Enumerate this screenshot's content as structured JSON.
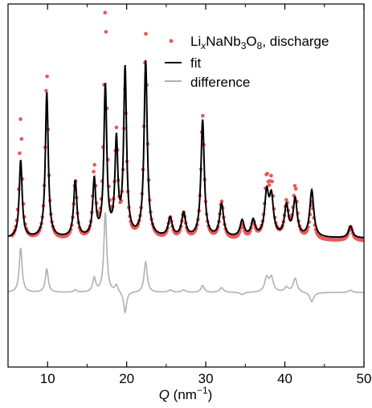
{
  "chart_data": {
    "type": "line",
    "xlabel_main": "Q",
    "xlabel_unit_open": " (nm",
    "xlabel_unit_exp": "−1",
    "xlabel_unit_close": ")",
    "xlim": [
      5,
      50
    ],
    "ylim": [
      -0.55,
      1.0
    ],
    "xticks": [
      10,
      20,
      30,
      40,
      50
    ],
    "xtick_labels": [
      "10",
      "20",
      "30",
      "40",
      "50"
    ],
    "legend_position": "top-right",
    "grid": false,
    "yaxis_ticks_shown": false,
    "colors": {
      "data": "#e8585a",
      "fit": "#000000",
      "difference": "#b0b0b0"
    },
    "legend": {
      "data": {
        "pre": "Li",
        "sub_x": "x",
        "mid": "NaNb",
        "sub_3": "3",
        "mid2": "O",
        "sub_8": "8",
        "post": ", discharge"
      },
      "fit": "fit",
      "difference": "difference"
    },
    "background_y": 0.0,
    "difference_offset": -0.22,
    "peaks": [
      {
        "q": 6.6,
        "height": 0.33,
        "obs": 0.52,
        "width": 0.22
      },
      {
        "q": 9.9,
        "height": 0.62,
        "obs": 0.72,
        "width": 0.22
      },
      {
        "q": 13.5,
        "height": 0.24,
        "obs": 0.25,
        "width": 0.24
      },
      {
        "q": 15.9,
        "height": 0.24,
        "obs": 0.3,
        "width": 0.22
      },
      {
        "q": 17.3,
        "height": 0.64,
        "obs": 0.98,
        "width": 0.22
      },
      {
        "q": 18.7,
        "height": 0.4,
        "obs": 0.43,
        "width": 0.22
      },
      {
        "q": 19.8,
        "height": 0.71,
        "obs": 0.62,
        "width": 0.22
      },
      {
        "q": 22.4,
        "height": 0.75,
        "obs": 0.88,
        "width": 0.24
      },
      {
        "q": 25.5,
        "height": 0.08,
        "obs": 0.09,
        "width": 0.3
      },
      {
        "q": 27.2,
        "height": 0.1,
        "obs": 0.11,
        "width": 0.3
      },
      {
        "q": 29.6,
        "height": 0.5,
        "obs": 0.53,
        "width": 0.25
      },
      {
        "q": 32.0,
        "height": 0.14,
        "obs": 0.16,
        "width": 0.3
      },
      {
        "q": 34.6,
        "height": 0.07,
        "obs": 0.06,
        "width": 0.3
      },
      {
        "q": 36.0,
        "height": 0.07,
        "obs": 0.07,
        "width": 0.3
      },
      {
        "q": 37.7,
        "height": 0.18,
        "obs": 0.24,
        "width": 0.3
      },
      {
        "q": 38.3,
        "height": 0.16,
        "obs": 0.22,
        "width": 0.3
      },
      {
        "q": 40.2,
        "height": 0.13,
        "obs": 0.15,
        "width": 0.3
      },
      {
        "q": 41.3,
        "height": 0.16,
        "obs": 0.22,
        "width": 0.3
      },
      {
        "q": 43.4,
        "height": 0.2,
        "obs": 0.16,
        "width": 0.3
      },
      {
        "q": 48.3,
        "height": 0.05,
        "obs": 0.06,
        "width": 0.3
      }
    ]
  }
}
